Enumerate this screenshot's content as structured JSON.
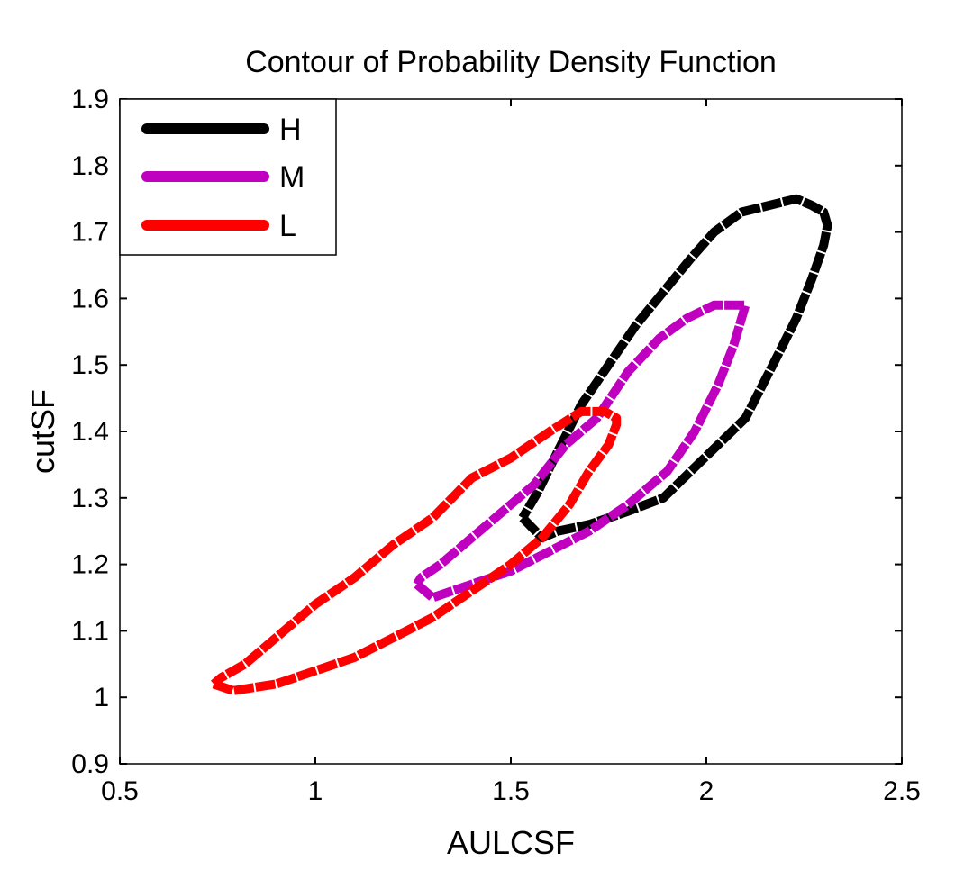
{
  "chart_data": {
    "type": "line",
    "title": "Contour of Probability Density Function",
    "xlabel": "AULCSF",
    "ylabel": "cutSF",
    "xlim": [
      0.5,
      2.5
    ],
    "ylim": [
      0.9,
      1.9
    ],
    "xticks": [
      0.5,
      1,
      1.5,
      2,
      2.5
    ],
    "xtick_labels": [
      "0.5",
      "1",
      "1.5",
      "2",
      "2.5"
    ],
    "yticks": [
      0.9,
      1.0,
      1.1,
      1.2,
      1.3,
      1.4,
      1.5,
      1.6,
      1.7,
      1.8,
      1.9
    ],
    "ytick_labels": [
      "0.9",
      "1",
      "1.1",
      "1.2",
      "1.3",
      "1.4",
      "1.5",
      "1.6",
      "1.7",
      "1.8",
      "1.9"
    ],
    "grid": false,
    "legend_position": "top-left",
    "series": [
      {
        "name": "H",
        "color": "#000000",
        "x": [
          1.53,
          1.58,
          1.62,
          1.7,
          1.8,
          1.89,
          1.96,
          2.03,
          2.1,
          2.17,
          2.23,
          2.27,
          2.3,
          2.31,
          2.3,
          2.27,
          2.23,
          2.16,
          2.09,
          2.02,
          1.96,
          1.89,
          1.82,
          1.75,
          1.68,
          1.62,
          1.57,
          1.53
        ],
        "y": [
          1.27,
          1.24,
          1.25,
          1.26,
          1.28,
          1.3,
          1.34,
          1.38,
          1.42,
          1.5,
          1.57,
          1.63,
          1.68,
          1.71,
          1.73,
          1.74,
          1.75,
          1.74,
          1.73,
          1.7,
          1.66,
          1.61,
          1.56,
          1.5,
          1.44,
          1.37,
          1.31,
          1.27
        ]
      },
      {
        "name": "M",
        "color": "#bf00bf",
        "x": [
          1.26,
          1.3,
          1.4,
          1.5,
          1.6,
          1.7,
          1.8,
          1.9,
          1.97,
          2.03,
          2.07,
          2.09,
          2.1,
          2.07,
          2.02,
          1.95,
          1.88,
          1.8,
          1.72,
          1.64,
          1.56,
          1.48,
          1.4,
          1.32,
          1.27,
          1.26
        ],
        "y": [
          1.17,
          1.15,
          1.17,
          1.19,
          1.22,
          1.25,
          1.29,
          1.34,
          1.4,
          1.47,
          1.53,
          1.57,
          1.59,
          1.59,
          1.59,
          1.57,
          1.54,
          1.49,
          1.42,
          1.38,
          1.32,
          1.28,
          1.24,
          1.2,
          1.18,
          1.17
        ]
      },
      {
        "name": "L",
        "color": "#ff0000",
        "x": [
          0.74,
          0.79,
          0.9,
          1.0,
          1.1,
          1.2,
          1.3,
          1.4,
          1.5,
          1.58,
          1.65,
          1.7,
          1.75,
          1.77,
          1.77,
          1.74,
          1.68,
          1.6,
          1.5,
          1.4,
          1.3,
          1.2,
          1.1,
          1.0,
          0.9,
          0.82,
          0.76,
          0.74
        ],
        "y": [
          1.02,
          1.01,
          1.02,
          1.04,
          1.06,
          1.09,
          1.12,
          1.16,
          1.2,
          1.24,
          1.29,
          1.34,
          1.38,
          1.41,
          1.42,
          1.43,
          1.43,
          1.4,
          1.36,
          1.33,
          1.27,
          1.23,
          1.18,
          1.14,
          1.09,
          1.05,
          1.03,
          1.02
        ]
      }
    ]
  }
}
